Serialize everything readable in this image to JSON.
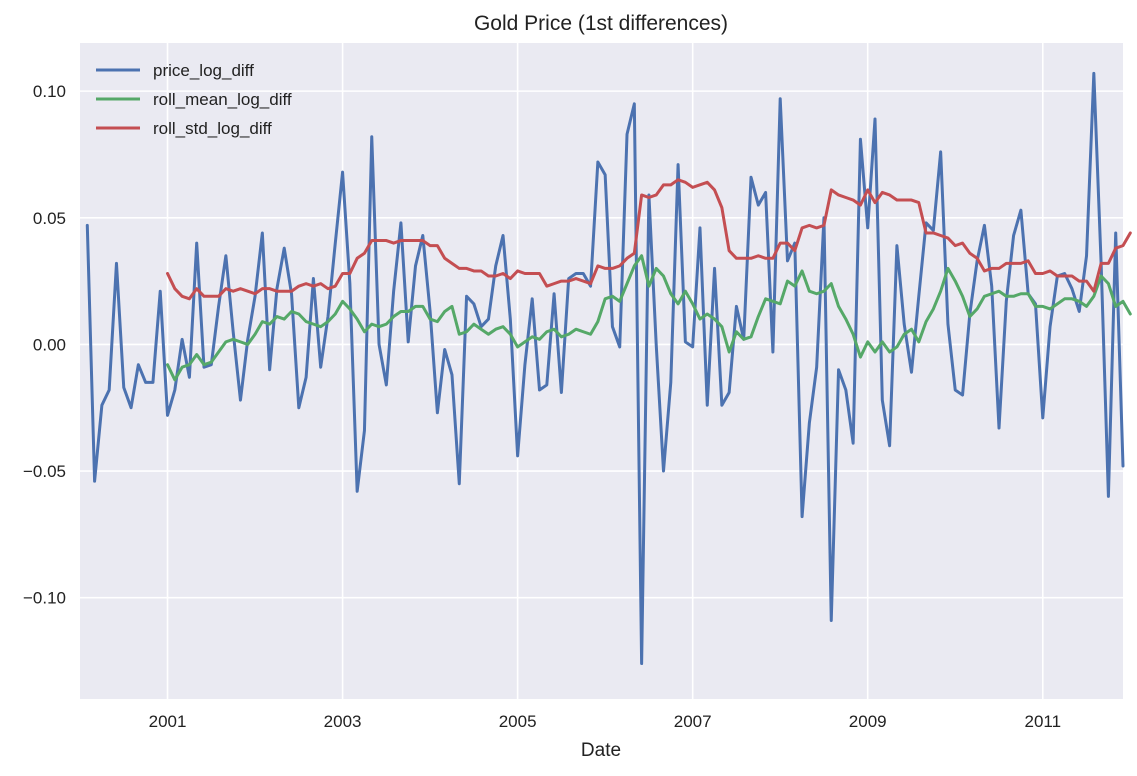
{
  "chart_data": {
    "type": "line",
    "title": "Gold Price (1st differences)",
    "xlabel": "Date",
    "ylabel": "",
    "x_tick_labels": [
      "2001",
      "2003",
      "2005",
      "2007",
      "2009",
      "2011"
    ],
    "x_ticks": [
      "2001-01",
      "2003-01",
      "2005-01",
      "2007-01",
      "2009-01",
      "2011-01"
    ],
    "y_ticks": [
      -0.1,
      -0.05,
      0.0,
      0.05,
      0.1
    ],
    "y_tick_labels": [
      "−0.10",
      "−0.05",
      "0.00",
      "0.05",
      "0.10"
    ],
    "xlim": [
      "2000-01",
      "2011-12"
    ],
    "ylim": [
      -0.14,
      0.119
    ],
    "grid": true,
    "legend_position": "top-left",
    "background_color": "#eaeaf2",
    "series": [
      {
        "name": "price_log_diff",
        "color": "#4c72b0",
        "start": "2000-02",
        "values": [
          0.047,
          -0.054,
          -0.024,
          -0.018,
          0.032,
          -0.017,
          -0.025,
          -0.008,
          -0.015,
          -0.015,
          0.021,
          -0.028,
          -0.018,
          0.002,
          -0.013,
          0.04,
          -0.009,
          -0.008,
          0.015,
          0.035,
          0.005,
          -0.022,
          0.002,
          0.019,
          0.044,
          -0.01,
          0.022,
          0.038,
          0.02,
          -0.025,
          -0.013,
          0.026,
          -0.009,
          0.011,
          0.04,
          0.068,
          0.024,
          -0.058,
          -0.034,
          0.082,
          0.0,
          -0.016,
          0.021,
          0.048,
          0.001,
          0.031,
          0.043,
          0.013,
          -0.027,
          -0.002,
          -0.012,
          -0.055,
          0.019,
          0.016,
          0.007,
          0.01,
          0.031,
          0.043,
          0.01,
          -0.044,
          -0.008,
          0.018,
          -0.018,
          -0.016,
          0.02,
          -0.019,
          0.026,
          0.028,
          0.028,
          0.023,
          0.072,
          0.067,
          0.007,
          -0.001,
          0.083,
          0.095,
          -0.126,
          0.059,
          0.0,
          -0.05,
          -0.015,
          0.071,
          0.001,
          -0.001,
          0.046,
          -0.024,
          0.03,
          -0.024,
          -0.019,
          0.015,
          0.002,
          0.066,
          0.055,
          0.06,
          -0.003,
          0.097,
          0.033,
          0.04,
          -0.068,
          -0.031,
          -0.009,
          0.05,
          -0.109,
          -0.01,
          -0.018,
          -0.039,
          0.081,
          0.046,
          0.089,
          -0.022,
          -0.04,
          0.039,
          0.008,
          -0.011,
          0.019,
          0.048,
          0.045,
          0.076,
          0.008,
          -0.018,
          -0.02,
          0.012,
          0.033,
          0.047,
          0.023,
          -0.033,
          0.017,
          0.043,
          0.053,
          0.02,
          0.016,
          -0.029,
          0.007,
          0.027,
          0.028,
          0.022,
          0.013,
          0.035,
          0.107,
          0.032,
          -0.06,
          0.044,
          -0.048
        ]
      },
      {
        "name": "roll_mean_log_diff",
        "color": "#55a868",
        "start": "2001-01",
        "values": [
          -0.008,
          -0.014,
          -0.009,
          -0.008,
          -0.004,
          -0.008,
          -0.007,
          -0.003,
          0.001,
          0.002,
          0.001,
          0.0,
          0.004,
          0.009,
          0.008,
          0.011,
          0.01,
          0.013,
          0.012,
          0.009,
          0.008,
          0.007,
          0.009,
          0.012,
          0.017,
          0.014,
          0.01,
          0.005,
          0.008,
          0.007,
          0.008,
          0.011,
          0.013,
          0.013,
          0.015,
          0.015,
          0.01,
          0.009,
          0.013,
          0.015,
          0.004,
          0.005,
          0.008,
          0.006,
          0.004,
          0.006,
          0.007,
          0.004,
          -0.001,
          0.001,
          0.003,
          0.002,
          0.005,
          0.006,
          0.003,
          0.004,
          0.006,
          0.005,
          0.004,
          0.009,
          0.018,
          0.019,
          0.017,
          0.024,
          0.031,
          0.035,
          0.023,
          0.03,
          0.027,
          0.02,
          0.016,
          0.021,
          0.016,
          0.01,
          0.012,
          0.01,
          0.007,
          -0.003,
          0.005,
          0.002,
          0.003,
          0.011,
          0.018,
          0.017,
          0.016,
          0.025,
          0.023,
          0.029,
          0.021,
          0.02,
          0.021,
          0.024,
          0.015,
          0.01,
          0.004,
          -0.005,
          0.001,
          -0.003,
          0.001,
          -0.003,
          -0.001,
          0.004,
          0.006,
          0.001,
          0.009,
          0.014,
          0.021,
          0.03,
          0.025,
          0.019,
          0.011,
          0.014,
          0.019,
          0.02,
          0.021,
          0.019,
          0.019,
          0.02,
          0.02,
          0.015,
          0.015,
          0.014,
          0.016,
          0.018,
          0.018,
          0.017,
          0.015,
          0.019,
          0.027,
          0.024,
          0.015,
          0.017,
          0.012
        ]
      },
      {
        "name": "roll_std_log_diff",
        "color": "#c44e52",
        "start": "2001-01",
        "values": [
          0.028,
          0.022,
          0.019,
          0.018,
          0.022,
          0.019,
          0.019,
          0.019,
          0.022,
          0.021,
          0.022,
          0.021,
          0.02,
          0.022,
          0.022,
          0.021,
          0.021,
          0.021,
          0.023,
          0.024,
          0.023,
          0.024,
          0.022,
          0.023,
          0.028,
          0.028,
          0.034,
          0.036,
          0.041,
          0.041,
          0.041,
          0.04,
          0.041,
          0.041,
          0.041,
          0.041,
          0.039,
          0.039,
          0.034,
          0.032,
          0.03,
          0.03,
          0.029,
          0.029,
          0.027,
          0.027,
          0.028,
          0.026,
          0.029,
          0.028,
          0.028,
          0.028,
          0.023,
          0.024,
          0.025,
          0.025,
          0.026,
          0.025,
          0.024,
          0.031,
          0.03,
          0.03,
          0.031,
          0.034,
          0.036,
          0.059,
          0.058,
          0.059,
          0.063,
          0.063,
          0.065,
          0.064,
          0.062,
          0.063,
          0.064,
          0.061,
          0.054,
          0.037,
          0.034,
          0.034,
          0.034,
          0.035,
          0.034,
          0.034,
          0.04,
          0.04,
          0.037,
          0.046,
          0.047,
          0.046,
          0.047,
          0.061,
          0.059,
          0.058,
          0.057,
          0.055,
          0.061,
          0.056,
          0.06,
          0.059,
          0.057,
          0.057,
          0.057,
          0.056,
          0.044,
          0.044,
          0.043,
          0.042,
          0.039,
          0.04,
          0.036,
          0.034,
          0.029,
          0.03,
          0.03,
          0.032,
          0.032,
          0.032,
          0.033,
          0.028,
          0.028,
          0.029,
          0.027,
          0.027,
          0.027,
          0.025,
          0.025,
          0.021,
          0.032,
          0.032,
          0.038,
          0.039,
          0.044
        ]
      }
    ]
  }
}
